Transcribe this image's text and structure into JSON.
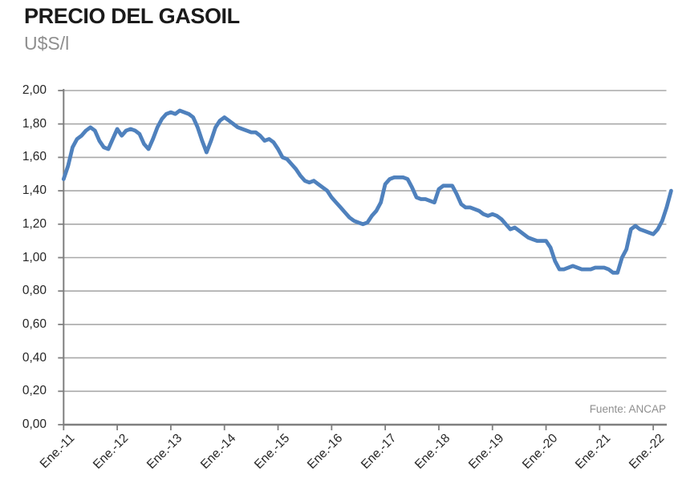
{
  "header": {
    "title": "PRECIO DEL GASOIL",
    "subtitle": "U$S/l"
  },
  "source_label": "Fuente: ANCAP",
  "colors": {
    "line": "#4F81BD",
    "grid": "#A9A9A9",
    "axis": "#7F7F7F",
    "title_text": "#1A1A1A",
    "tick_text": "#262626",
    "muted_text": "#8F8F8F"
  },
  "chart_data": {
    "type": "line",
    "title": "PRECIO DEL GASOIL",
    "ylabel": "U$S/l",
    "source": "Fuente: ANCAP",
    "grid": "horizontal",
    "legend": "none",
    "y_axis": {
      "min": 0,
      "max": 2,
      "step": 0.2,
      "tick_labels": [
        "0,00",
        "0,20",
        "0,40",
        "0,60",
        "0,80",
        "1,00",
        "1,20",
        "1,40",
        "1,60",
        "1,80",
        "2,00"
      ]
    },
    "x_axis": {
      "tick_labels": [
        "Ene.-11",
        "Ene.-12",
        "Ene.-13",
        "Ene.-14",
        "Ene.-15",
        "Ene.-16",
        "Ene.-17",
        "Ene.-18",
        "Ene.-19",
        "Ene.-20",
        "Ene.-21",
        "Ene.-22"
      ],
      "points_interval": "monthly",
      "ticks_every_n_points": 12
    },
    "values": [
      1.47,
      1.55,
      1.66,
      1.71,
      1.73,
      1.76,
      1.78,
      1.76,
      1.7,
      1.66,
      1.65,
      1.71,
      1.77,
      1.73,
      1.76,
      1.77,
      1.76,
      1.74,
      1.68,
      1.65,
      1.71,
      1.78,
      1.83,
      1.86,
      1.87,
      1.86,
      1.88,
      1.87,
      1.86,
      1.84,
      1.78,
      1.7,
      1.63,
      1.7,
      1.78,
      1.82,
      1.84,
      1.82,
      1.8,
      1.78,
      1.77,
      1.76,
      1.75,
      1.75,
      1.73,
      1.7,
      1.71,
      1.69,
      1.65,
      1.6,
      1.59,
      1.56,
      1.53,
      1.49,
      1.46,
      1.45,
      1.46,
      1.44,
      1.42,
      1.4,
      1.36,
      1.33,
      1.3,
      1.27,
      1.24,
      1.22,
      1.21,
      1.2,
      1.21,
      1.25,
      1.28,
      1.33,
      1.44,
      1.47,
      1.48,
      1.48,
      1.48,
      1.47,
      1.42,
      1.36,
      1.35,
      1.35,
      1.34,
      1.33,
      1.41,
      1.43,
      1.43,
      1.43,
      1.38,
      1.32,
      1.3,
      1.3,
      1.29,
      1.28,
      1.26,
      1.25,
      1.26,
      1.25,
      1.23,
      1.2,
      1.17,
      1.18,
      1.16,
      1.14,
      1.12,
      1.11,
      1.1,
      1.1,
      1.1,
      1.06,
      0.98,
      0.93,
      0.93,
      0.94,
      0.95,
      0.94,
      0.93,
      0.93,
      0.93,
      0.94,
      0.94,
      0.94,
      0.93,
      0.91,
      0.91,
      1.0,
      1.05,
      1.17,
      1.19,
      1.17,
      1.16,
      1.15,
      1.14,
      1.17,
      1.22,
      1.3,
      1.4
    ]
  }
}
